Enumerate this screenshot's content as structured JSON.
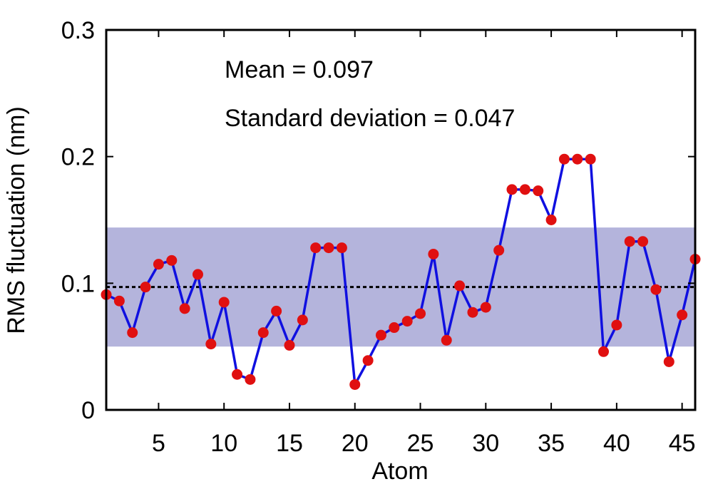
{
  "chart_data": {
    "type": "line",
    "xlabel": "Atom",
    "ylabel": "RMS fluctuation (nm)",
    "xlim": [
      1,
      46
    ],
    "ylim": [
      0,
      0.3
    ],
    "x_ticks": [
      5,
      10,
      15,
      20,
      25,
      30,
      35,
      40,
      45
    ],
    "y_ticks": [
      {
        "value": 0,
        "label": "0"
      },
      {
        "value": 0.1,
        "label": "0.1"
      },
      {
        "value": 0.2,
        "label": "0.2"
      },
      {
        "value": 0.3,
        "label": "0.3"
      }
    ],
    "annotations": [
      "Mean = 0.097",
      "Standard deviation = 0.047"
    ],
    "mean": 0.097,
    "std": 0.047,
    "band": [
      0.05,
      0.144
    ],
    "series": [
      {
        "x": [
          1,
          2,
          3,
          4,
          5,
          6,
          7,
          8,
          9,
          10,
          11,
          12,
          13,
          14,
          15,
          16,
          17,
          18,
          19,
          20,
          21,
          22,
          23,
          24,
          25,
          26,
          27,
          28,
          29,
          30,
          31,
          32,
          33,
          34,
          35,
          36,
          37,
          38,
          39,
          40,
          41,
          42,
          43,
          44,
          45,
          46
        ],
        "values": [
          0.091,
          0.086,
          0.061,
          0.097,
          0.115,
          0.118,
          0.08,
          0.107,
          0.052,
          0.085,
          0.028,
          0.024,
          0.061,
          0.078,
          0.051,
          0.071,
          0.128,
          0.128,
          0.128,
          0.02,
          0.039,
          0.059,
          0.065,
          0.07,
          0.076,
          0.123,
          0.055,
          0.098,
          0.077,
          0.081,
          0.126,
          0.174,
          0.174,
          0.173,
          0.15,
          0.198,
          0.198,
          0.198,
          0.046,
          0.067,
          0.133,
          0.133,
          0.095,
          0.038,
          0.075,
          0.119
        ]
      }
    ],
    "colors": {
      "line": "#1010e0",
      "marker": "#e01010",
      "band": "#b4b4dc",
      "mean_line": "#000000"
    }
  }
}
